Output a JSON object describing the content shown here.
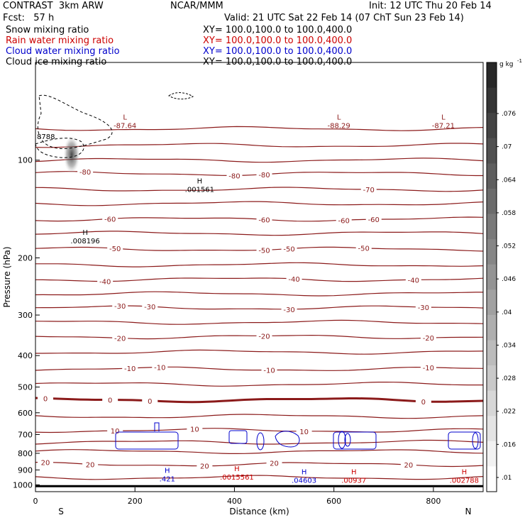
{
  "header": {
    "model": "CONTRAST  3km ARW",
    "center": "NCAR/MMM",
    "init": "Init: 12 UTC Thu 20 Feb 14",
    "fcst": "Fcst:   57 h",
    "valid": "Valid: 21 UTC Sat 22 Feb 14 (07 ChT Sun 23 Feb 14)",
    "fields": [
      {
        "name": "Snow mixing ratio",
        "xy": "XY= 100.0,100.0 to 100.0,400.0",
        "color": "#000000"
      },
      {
        "name": "Rain water mixing ratio",
        "xy": "XY= 100.0,100.0 to 100.0,400.0",
        "color": "#cc0000"
      },
      {
        "name": "Cloud water mixing ratio",
        "xy": "XY= 100.0,100.0 to 100.0,400.0",
        "color": "#0000cc"
      },
      {
        "name": "Cloud ice mixing ratio",
        "xy": "XY= 100.0,100.0 to 100.0,400.0",
        "color": "#000000"
      }
    ]
  },
  "chart_data": {
    "type": "contour",
    "xlabel": "Distance (km)",
    "ylabel": "Pressure (hPa)",
    "xlim": [
      0,
      900
    ],
    "ylim": [
      1050,
      50
    ],
    "yscale": "log",
    "x_ticks": [
      0,
      200,
      400,
      600,
      800
    ],
    "y_ticks": [
      100,
      200,
      300,
      400,
      500,
      600,
      700,
      800,
      900,
      1000
    ],
    "x_end_labels": {
      "left": "S",
      "right": "N"
    },
    "contour_color": "#8b1a1a",
    "temperature_contours": [
      {
        "p_left": 80,
        "p_right": 80,
        "label": "",
        "labels_at": []
      },
      {
        "p_left": 90,
        "p_right": 90,
        "label": "",
        "labels_at": []
      },
      {
        "p_left": 100,
        "p_right": 100,
        "label": "",
        "labels_at": []
      },
      {
        "p_left": 110,
        "p_right": 110,
        "label": "-80",
        "labels_at": [
          100,
          400,
          460
        ]
      },
      {
        "p_left": 123,
        "p_right": 123,
        "label": "-70",
        "labels_at": [
          670
        ]
      },
      {
        "p_left": 136,
        "p_right": 136,
        "label": "",
        "labels_at": []
      },
      {
        "p_left": 152,
        "p_right": 152,
        "label": "-60",
        "labels_at": [
          150,
          460,
          620,
          680
        ]
      },
      {
        "p_left": 168,
        "p_right": 168,
        "label": "",
        "labels_at": []
      },
      {
        "p_left": 188,
        "p_right": 188,
        "label": "-50",
        "labels_at": [
          160,
          460,
          510,
          660
        ]
      },
      {
        "p_left": 210,
        "p_right": 210,
        "label": "",
        "labels_at": []
      },
      {
        "p_left": 233,
        "p_right": 233,
        "label": "-40",
        "labels_at": [
          140,
          520,
          760
        ]
      },
      {
        "p_left": 258,
        "p_right": 258,
        "label": "",
        "labels_at": []
      },
      {
        "p_left": 285,
        "p_right": 285,
        "label": "-30",
        "labels_at": [
          170,
          230,
          510,
          780
        ]
      },
      {
        "p_left": 316,
        "p_right": 316,
        "label": "",
        "labels_at": []
      },
      {
        "p_left": 350,
        "p_right": 350,
        "label": "-20",
        "labels_at": [
          170,
          460,
          790
        ]
      },
      {
        "p_left": 390,
        "p_right": 390,
        "label": "",
        "labels_at": []
      },
      {
        "p_left": 440,
        "p_right": 440,
        "label": "-10",
        "labels_at": [
          190,
          250,
          470,
          790
        ]
      },
      {
        "p_left": 490,
        "p_right": 490,
        "label": "",
        "labels_at": []
      },
      {
        "p_left": 548,
        "p_right": 548,
        "label": "0",
        "labels_at": [
          20,
          150,
          230,
          780
        ]
      },
      {
        "p_left": 615,
        "p_right": 615,
        "label": "",
        "labels_at": []
      },
      {
        "p_left": 680,
        "p_right": 680,
        "label": "10",
        "labels_at": [
          160,
          320,
          540
        ]
      },
      {
        "p_left": 740,
        "p_right": 740,
        "label": "",
        "labels_at": []
      },
      {
        "p_left": 790,
        "p_right": 790,
        "label": "",
        "labels_at": []
      },
      {
        "p_left": 865,
        "p_right": 865,
        "label": "20",
        "labels_at": [
          20,
          110,
          340,
          480,
          750
        ]
      },
      {
        "p_left": 950,
        "p_right": 950,
        "label": "",
        "labels_at": []
      }
    ],
    "surface_pressure": 1010,
    "extrema": [
      {
        "kind": "L",
        "x": 180,
        "p": 75,
        "value": "-87.64",
        "color": "#8b1a1a"
      },
      {
        "kind": "L",
        "x": 610,
        "p": 75,
        "value": "-88.29",
        "color": "#8b1a1a"
      },
      {
        "kind": "L",
        "x": 820,
        "p": 75,
        "value": "-87.21",
        "color": "#8b1a1a"
      },
      {
        "kind": "H",
        "x": 330,
        "p": 118,
        "value": ".001561",
        "color": "#000000"
      },
      {
        "kind": "H",
        "x": 100,
        "p": 170,
        "value": ".008196",
        "color": "#000000"
      },
      {
        "kind": "H",
        "x": 265,
        "p": 920,
        "value": ".421",
        "color": "#0000cc"
      },
      {
        "kind": "H",
        "x": 405,
        "p": 908,
        "value": ".0015561",
        "color": "#cc0000"
      },
      {
        "kind": "H",
        "x": 540,
        "p": 928,
        "value": ".04603",
        "color": "#0000cc"
      },
      {
        "kind": "H",
        "x": 640,
        "p": 928,
        "value": ".00937",
        "color": "#cc0000"
      },
      {
        "kind": "H",
        "x": 862,
        "p": 928,
        "value": ".002788",
        "color": "#cc0000"
      }
    ],
    "left_small_label": "8788",
    "colorbar": {
      "unit": "g kg",
      "labels": [
        ".076",
        ".07",
        ".064",
        ".058",
        ".052",
        ".046",
        ".04",
        ".034",
        ".028",
        ".022",
        ".016",
        ".01"
      ]
    }
  }
}
